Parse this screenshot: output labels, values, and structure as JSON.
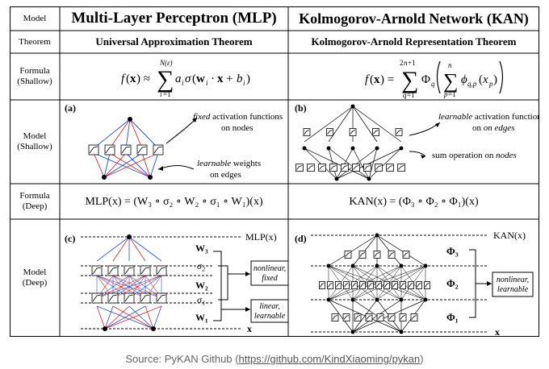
{
  "row_labels": {
    "model_header": "Model",
    "theorem": "Theorem",
    "formula_shallow": [
      "Formula",
      "(Shallow)"
    ],
    "model_shallow": [
      "Model",
      "(Shallow)"
    ],
    "formula_deep": [
      "Formula",
      "(Deep)"
    ],
    "model_deep": [
      "Model",
      "(Deep)"
    ]
  },
  "mlp": {
    "title": "Multi-Layer Perceptron (MLP)",
    "theorem": "Universal Approximation Theorem",
    "formula_shallow": "f(x) ≈ Σ_{i=1}^{N(ε)} a_i σ(w_i · x + b_i)",
    "formula_deep": "MLP(x) = (W₃ ∘ σ₂ ∘ W₂ ∘ σ₁ ∘ W₁)(x)",
    "panel_a": "(a)",
    "fixed_label": [
      "fixed",
      " activation functions",
      "on nodes"
    ],
    "learnable_label": [
      "learnable",
      " weights",
      "on edges"
    ],
    "panel_c": "(c)",
    "deep_output": "MLP(x)",
    "deep_input": "x",
    "layers": [
      "W₃",
      "σ₂",
      "W₂",
      "σ₁",
      "W₁"
    ],
    "box_nonlinear": [
      "nonlinear,",
      "fixed"
    ],
    "box_linear": [
      "linear,",
      "learnable"
    ]
  },
  "kan": {
    "title": "Kolmogorov-Arnold Network (KAN)",
    "theorem": "Kolmogorov-Arnold Representation Theorem",
    "formula_shallow": "f(x) = Σ_{q=1}^{2n+1} Φ_q ( Σ_{p=1}^{n} φ_{q,p}(x_p) )",
    "formula_deep": "KAN(x) = (Φ₃ ∘ Φ₂ ∘ Φ₁)(x)",
    "panel_b": "(b)",
    "learnable_label": [
      "learnable",
      " activation functions",
      "on edges"
    ],
    "sum_label": [
      "sum operation on ",
      "nodes"
    ],
    "panel_d": "(d)",
    "deep_output": "KAN(x)",
    "deep_input": "x",
    "layers": [
      "Φ₃",
      "Φ₂",
      "Φ₁"
    ],
    "box_nonlinear": [
      "nonlinear,",
      "learnable"
    ]
  },
  "caption": {
    "prefix": "Source: PyKAN Github (",
    "link": "https://github.com/KindXiaoming/pykan",
    "suffix": ")"
  },
  "colors": {
    "red": "#d62728",
    "blue": "#1f4fd8",
    "grid": "#000000",
    "caption": "#666666"
  }
}
